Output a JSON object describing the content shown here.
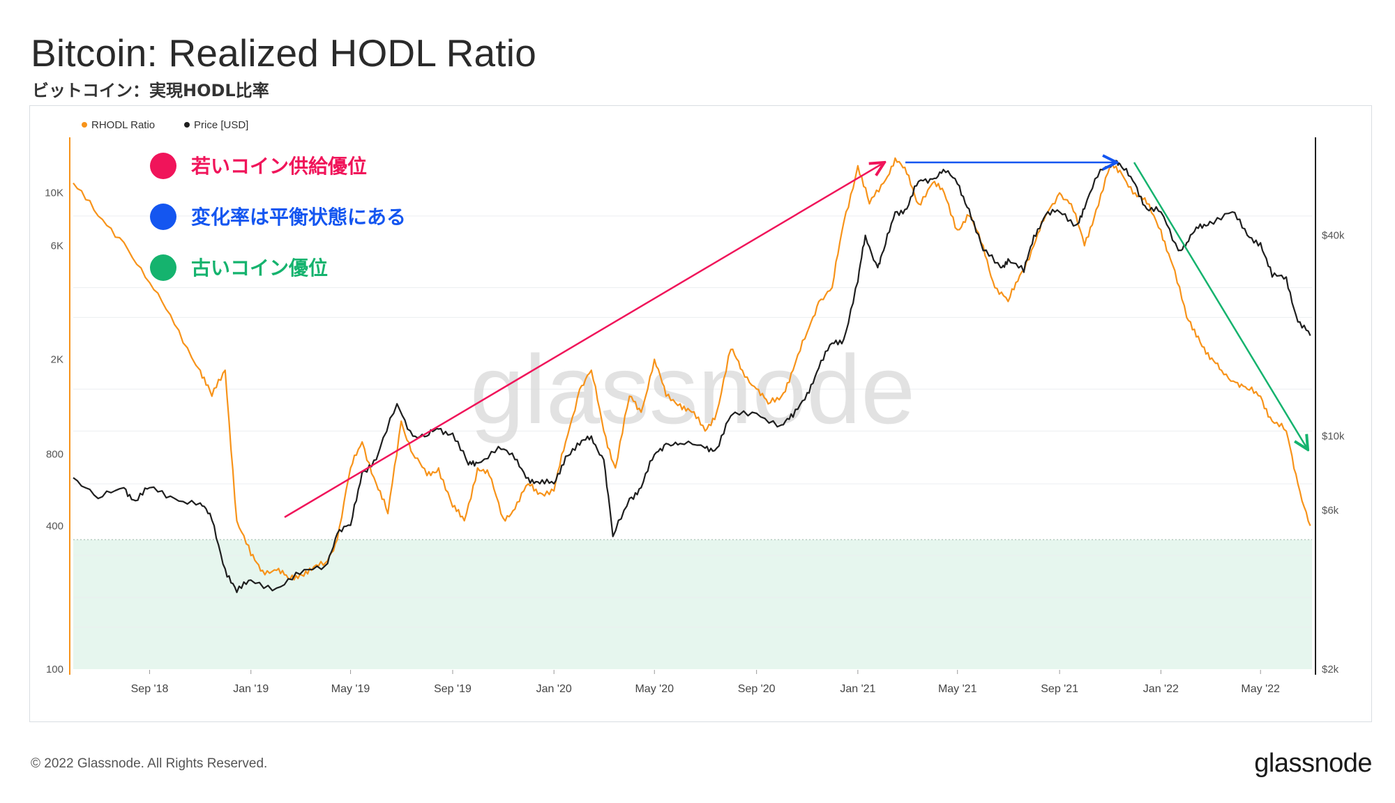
{
  "title": "Bitcoin: Realized HODL Ratio",
  "subtitle": "ビットコイン：実現HODL比率",
  "footer": {
    "copyright": "© 2022 Glassnode. All Rights Reserved.",
    "logo": "glassnode"
  },
  "watermark": "glassnode",
  "annotations": [
    {
      "label": "若いコイン供給優位",
      "color": "#f0145a"
    },
    {
      "label": "変化率は平衡状態にある",
      "color": "#1456f0"
    },
    {
      "label": "古いコイン優位",
      "color": "#15b36e"
    }
  ],
  "chart_data": {
    "type": "line",
    "x_axis": {
      "type": "date",
      "ticks": [
        "Sep '18",
        "Jan '19",
        "May '19",
        "Sep '19",
        "Jan '20",
        "May '20",
        "Sep '20",
        "Jan '21",
        "May '21",
        "Sep '21",
        "Jan '22",
        "May '22"
      ]
    },
    "y_left": {
      "scale": "log",
      "ticks": [
        "100",
        "400",
        "800",
        "2K",
        "6K",
        "10K"
      ]
    },
    "y_right": {
      "scale": "log",
      "ticks": [
        "$2k",
        "$6k",
        "$10k",
        "$40k"
      ]
    },
    "legend_position": "top-left",
    "shaded_zone": {
      "axis": "left",
      "from": 100,
      "to": 350,
      "color": "#e6f6ee"
    },
    "grid": true,
    "series": [
      {
        "name": "RHODL Ratio",
        "axis": "left",
        "color": "#f7931a",
        "x": [
          "2018-06-01",
          "2018-07-01",
          "2018-08-01",
          "2018-09-01",
          "2018-10-01",
          "2018-11-01",
          "2018-11-15",
          "2018-12-01",
          "2018-12-15",
          "2019-01-01",
          "2019-01-15",
          "2019-02-01",
          "2019-02-15",
          "2019-03-01",
          "2019-03-15",
          "2019-04-01",
          "2019-04-15",
          "2019-05-01",
          "2019-05-15",
          "2019-06-01",
          "2019-06-15",
          "2019-07-01",
          "2019-07-15",
          "2019-08-01",
          "2019-08-15",
          "2019-09-01",
          "2019-09-15",
          "2019-10-01",
          "2019-10-15",
          "2019-11-01",
          "2019-11-15",
          "2019-12-01",
          "2019-12-15",
          "2020-01-01",
          "2020-01-15",
          "2020-02-01",
          "2020-02-15",
          "2020-03-01",
          "2020-03-15",
          "2020-04-01",
          "2020-04-15",
          "2020-05-01",
          "2020-05-15",
          "2020-06-01",
          "2020-06-15",
          "2020-07-01",
          "2020-07-15",
          "2020-08-01",
          "2020-08-15",
          "2020-09-01",
          "2020-09-15",
          "2020-10-01",
          "2020-10-15",
          "2020-11-01",
          "2020-11-15",
          "2020-12-01",
          "2020-12-15",
          "2021-01-01",
          "2021-01-15",
          "2021-02-01",
          "2021-02-15",
          "2021-03-01",
          "2021-03-15",
          "2021-04-01",
          "2021-04-15",
          "2021-05-01",
          "2021-05-15",
          "2021-06-01",
          "2021-06-15",
          "2021-07-01",
          "2021-07-15",
          "2021-08-01",
          "2021-08-15",
          "2021-09-01",
          "2021-09-15",
          "2021-10-01",
          "2021-10-15",
          "2021-11-01",
          "2021-11-15",
          "2021-12-01",
          "2021-12-15",
          "2022-01-01",
          "2022-01-15",
          "2022-02-01",
          "2022-02-15",
          "2022-03-01",
          "2022-03-15",
          "2022-04-01",
          "2022-04-15",
          "2022-05-01",
          "2022-05-15",
          "2022-06-01",
          "2022-06-15",
          "2022-06-30"
        ],
        "y": [
          11000,
          8000,
          6200,
          4200,
          2800,
          1800,
          1400,
          1800,
          420,
          300,
          260,
          260,
          240,
          250,
          260,
          280,
          350,
          700,
          900,
          600,
          450,
          1100,
          800,
          650,
          700,
          480,
          420,
          700,
          650,
          430,
          470,
          600,
          550,
          560,
          900,
          1500,
          1800,
          1000,
          700,
          1400,
          1200,
          2000,
          1400,
          1300,
          1200,
          1000,
          1200,
          2200,
          1800,
          1500,
          1300,
          1400,
          1800,
          2600,
          3500,
          4000,
          7500,
          13000,
          9000,
          11000,
          14000,
          12000,
          9000,
          11000,
          10000,
          7000,
          8000,
          6000,
          4000,
          3500,
          4500,
          6000,
          8000,
          10000,
          9000,
          6000,
          8500,
          13000,
          12000,
          10000,
          9000,
          7000,
          5000,
          3000,
          2500,
          2000,
          1800,
          1600,
          1500,
          1400,
          1100,
          1000,
          600,
          400
        ],
        "line_width": 2.2
      },
      {
        "name": "Price [USD]",
        "axis": "right",
        "color": "#1f1f1f",
        "x": [
          "2018-06-01",
          "2018-07-01",
          "2018-08-01",
          "2018-08-15",
          "2018-09-01",
          "2018-10-01",
          "2018-11-01",
          "2018-11-15",
          "2018-12-01",
          "2018-12-15",
          "2019-01-01",
          "2019-02-01",
          "2019-03-01",
          "2019-04-01",
          "2019-04-15",
          "2019-05-01",
          "2019-05-15",
          "2019-06-01",
          "2019-06-26",
          "2019-07-15",
          "2019-08-01",
          "2019-08-15",
          "2019-09-01",
          "2019-09-20",
          "2019-10-01",
          "2019-10-26",
          "2019-11-15",
          "2019-12-01",
          "2019-12-15",
          "2020-01-01",
          "2020-01-15",
          "2020-02-01",
          "2020-02-15",
          "2020-03-01",
          "2020-03-12",
          "2020-04-01",
          "2020-04-15",
          "2020-05-01",
          "2020-05-15",
          "2020-06-01",
          "2020-07-01",
          "2020-07-15",
          "2020-08-01",
          "2020-09-01",
          "2020-10-01",
          "2020-10-15",
          "2020-11-01",
          "2020-11-15",
          "2020-12-01",
          "2020-12-15",
          "2021-01-01",
          "2021-01-10",
          "2021-01-25",
          "2021-02-01",
          "2021-02-15",
          "2021-03-01",
          "2021-03-15",
          "2021-04-01",
          "2021-04-14",
          "2021-05-01",
          "2021-05-15",
          "2021-06-01",
          "2021-06-22",
          "2021-07-01",
          "2021-07-20",
          "2021-08-01",
          "2021-08-15",
          "2021-09-01",
          "2021-09-21",
          "2021-10-01",
          "2021-10-20",
          "2021-11-08",
          "2021-11-15",
          "2021-12-01",
          "2021-12-15",
          "2022-01-01",
          "2022-01-22",
          "2022-02-01",
          "2022-02-15",
          "2022-03-01",
          "2022-03-28",
          "2022-04-15",
          "2022-05-01",
          "2022-05-15",
          "2022-06-01",
          "2022-06-15",
          "2022-06-30"
        ],
        "y": [
          7500,
          6500,
          7000,
          6400,
          7000,
          6500,
          6300,
          5600,
          4000,
          3400,
          3700,
          3500,
          3850,
          4100,
          5100,
          5400,
          7800,
          8500,
          12500,
          10000,
          10000,
          10500,
          10200,
          8200,
          8300,
          9300,
          8500,
          7500,
          7200,
          7200,
          8700,
          9400,
          10000,
          8500,
          5000,
          6500,
          7000,
          8800,
          9500,
          9500,
          9200,
          9200,
          11500,
          11700,
          10800,
          11400,
          13500,
          16000,
          19000,
          19500,
          29000,
          40000,
          32000,
          36000,
          47000,
          48000,
          58000,
          59000,
          63000,
          57000,
          48000,
          36000,
          32000,
          34000,
          31000,
          40000,
          46000,
          47000,
          43000,
          48000,
          63000,
          67000,
          64000,
          57000,
          48000,
          47000,
          36000,
          38000,
          42000,
          44000,
          47000,
          40000,
          38000,
          30000,
          30000,
          22000,
          20000
        ],
        "line_width": 2.2
      }
    ]
  }
}
